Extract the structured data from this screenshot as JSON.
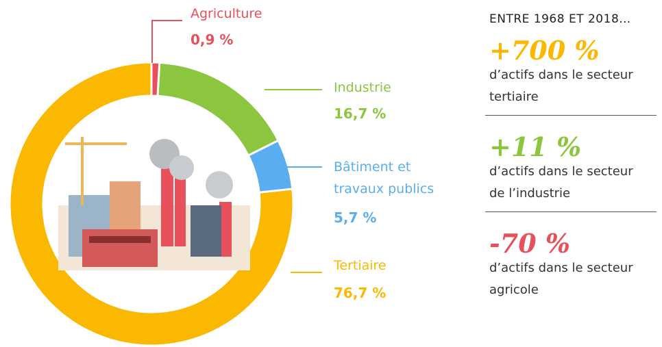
{
  "chart_data": {
    "type": "donut",
    "categories": [
      "Agriculture",
      "Industrie",
      "Bâtiment et travaux publics",
      "Tertiaire"
    ],
    "values": [
      0.9,
      16.7,
      5.7,
      76.7
    ],
    "value_labels": [
      "0,9 %",
      "16,7 %",
      "5,7 %",
      "76,7 %"
    ],
    "colors": [
      "#e8505b",
      "#8cc63f",
      "#5aaef0",
      "#fbb800"
    ]
  },
  "highlights": {
    "title": "ENTRE 1968 ET 2018…",
    "items": [
      {
        "value": "+700 %",
        "text": "d’actifs dans le secteur tertiaire",
        "color": "#fbb800"
      },
      {
        "value": "+11 %",
        "text": "d’actifs dans le secteur de l’industrie",
        "color": "#8cc63f"
      },
      {
        "value": "-70 %",
        "text": "d’actifs dans le secteur agricole",
        "color": "#e8505b"
      }
    ]
  }
}
